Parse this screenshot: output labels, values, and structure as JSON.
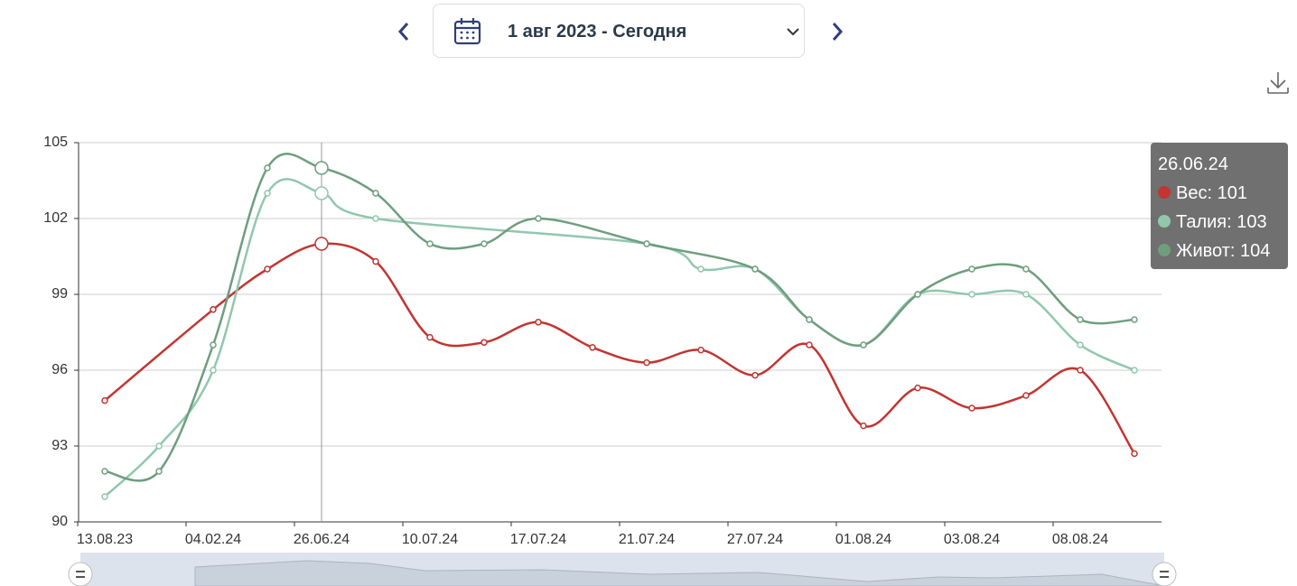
{
  "date_picker": {
    "label": "1 авг 2023 - Сегодня"
  },
  "chart_data": {
    "type": "line",
    "smooth": true,
    "connect_nulls": true,
    "categories": [
      "13.08.23",
      null,
      "04.02.24",
      null,
      "26.06.24",
      null,
      "10.07.24",
      null,
      "17.07.24",
      null,
      "21.07.24",
      null,
      "27.07.24",
      null,
      "01.08.24",
      null,
      "03.08.24",
      null,
      "08.08.24",
      null
    ],
    "series": [
      {
        "name": "Вес",
        "color": "#c23531",
        "values": [
          94.8,
          null,
          98.4,
          100,
          101,
          100.3,
          97.3,
          97.1,
          97.9,
          96.9,
          96.3,
          96.8,
          95.8,
          97,
          93.8,
          95.3,
          94.5,
          95,
          96,
          92.7
        ]
      },
      {
        "name": "Талия",
        "color": "#91c7ae",
        "values": [
          91,
          93,
          96,
          103,
          103,
          102,
          null,
          null,
          null,
          null,
          101,
          100,
          100,
          98,
          97,
          99,
          99,
          99,
          97,
          96
        ]
      },
      {
        "name": "Живот",
        "color": "#6e9e7e",
        "values": [
          92,
          92,
          97,
          104,
          104,
          103,
          101,
          101,
          102,
          null,
          101,
          null,
          100,
          98,
          97,
          99,
          100,
          100,
          98,
          98
        ]
      }
    ],
    "ylim": [
      90,
      105
    ],
    "yticks": [
      90,
      93,
      96,
      99,
      102,
      105
    ],
    "grid": true,
    "tooltip": {
      "index": 4,
      "title": "26.06.24",
      "items": [
        "Вес: 101",
        "Талия: 103",
        "Живот: 104"
      ]
    }
  }
}
